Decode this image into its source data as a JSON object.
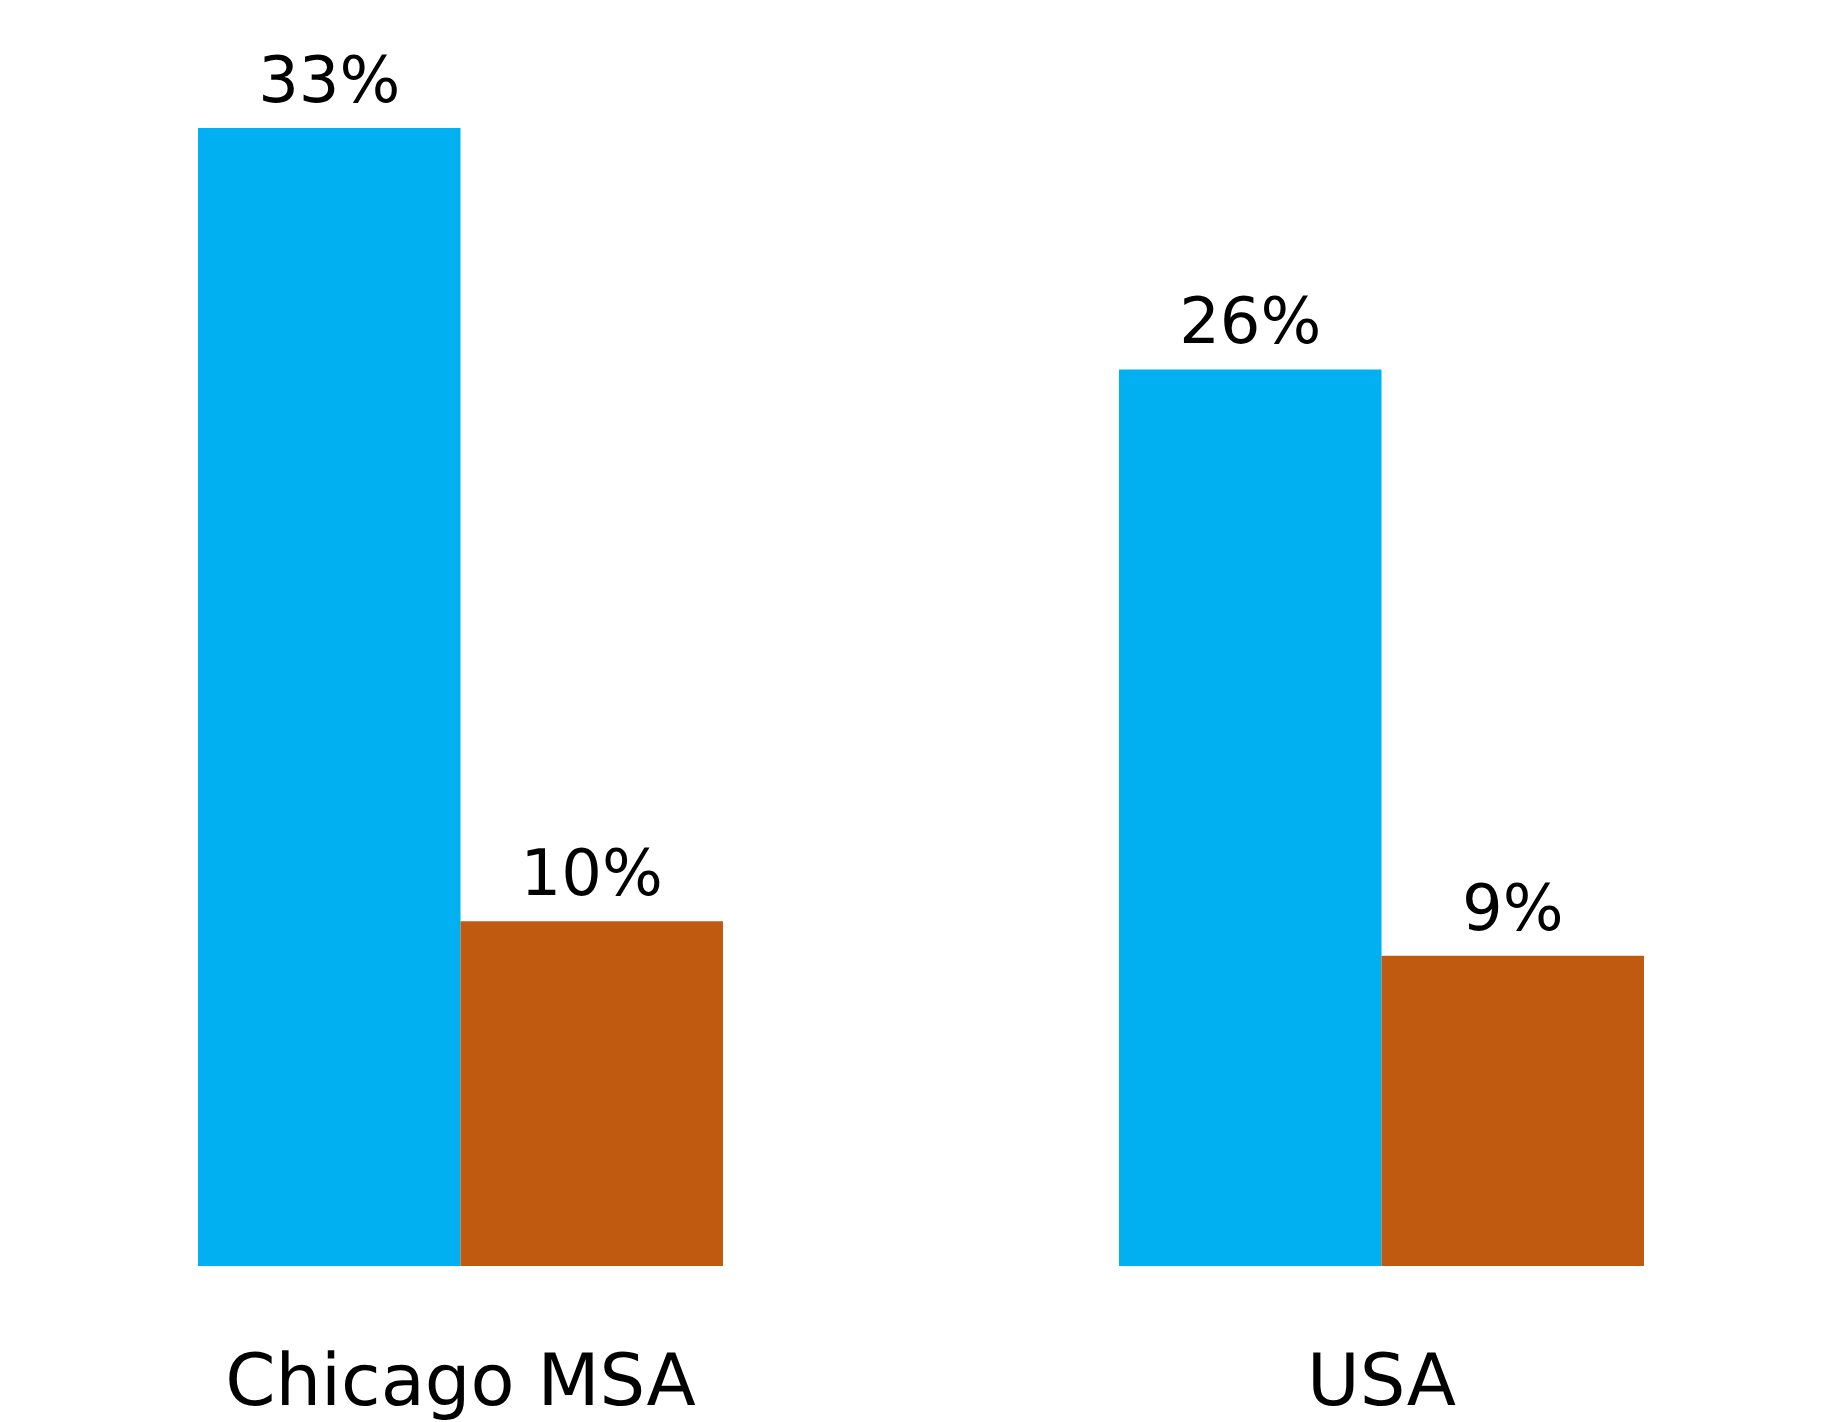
{
  "chart_data": {
    "type": "bar",
    "categories": [
      "Chicago MSA",
      "USA"
    ],
    "series": [
      {
        "color": "#00b0f0",
        "values": [
          33,
          26
        ],
        "value_labels": [
          "33%",
          "26%"
        ]
      },
      {
        "color": "#c05a10",
        "values": [
          10,
          9
        ],
        "value_labels": [
          "10%",
          "9%"
        ]
      }
    ],
    "tick_labels": "x"
  }
}
